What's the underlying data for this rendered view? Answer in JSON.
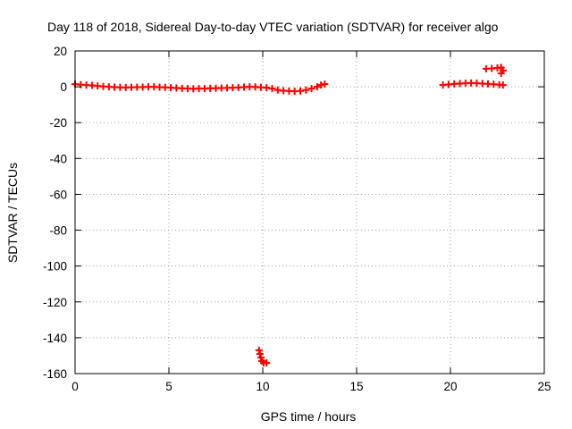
{
  "chart_data": {
    "type": "scatter",
    "title": "Day 118 of 2018, Sidereal Day-to-day VTEC variation (SDTVAR) for receiver algo",
    "xlabel": "GPS time / hours",
    "ylabel": "SDTVAR / TECUs",
    "xlim": [
      0,
      25
    ],
    "ylim": [
      -160,
      20
    ],
    "xticks": [
      0,
      5,
      10,
      15,
      20,
      25
    ],
    "yticks": [
      -160,
      -140,
      -120,
      -100,
      -80,
      -60,
      -40,
      -20,
      0,
      20
    ],
    "grid": true,
    "legend": "none",
    "marker": "plus",
    "color": "#ff0000",
    "series": [
      {
        "points": [
          [
            0.0,
            1.5
          ],
          [
            0.3,
            1.2
          ],
          [
            0.6,
            1.0
          ],
          [
            0.9,
            0.8
          ],
          [
            1.2,
            0.5
          ],
          [
            1.5,
            0.2
          ],
          [
            1.8,
            0.0
          ],
          [
            2.1,
            -0.2
          ],
          [
            2.4,
            -0.3
          ],
          [
            2.7,
            -0.4
          ],
          [
            3.0,
            -0.3
          ],
          [
            3.3,
            -0.2
          ],
          [
            3.6,
            -0.2
          ],
          [
            3.9,
            0.0
          ],
          [
            4.2,
            0.0
          ],
          [
            4.5,
            -0.2
          ],
          [
            4.8,
            -0.3
          ],
          [
            5.1,
            -0.5
          ],
          [
            5.4,
            -0.7
          ],
          [
            5.7,
            -0.9
          ],
          [
            6.0,
            -1.0
          ],
          [
            6.3,
            -1.1
          ],
          [
            6.6,
            -1.0
          ],
          [
            6.9,
            -1.0
          ],
          [
            7.2,
            -0.9
          ],
          [
            7.5,
            -0.8
          ],
          [
            7.8,
            -0.7
          ],
          [
            8.1,
            -0.6
          ],
          [
            8.4,
            -0.5
          ],
          [
            8.7,
            -0.4
          ],
          [
            9.0,
            -0.2
          ],
          [
            9.3,
            0.0
          ],
          [
            9.6,
            -0.1
          ],
          [
            9.9,
            -0.3
          ],
          [
            10.2,
            -0.5
          ],
          [
            10.5,
            -1.0
          ],
          [
            10.8,
            -1.8
          ],
          [
            11.1,
            -2.2
          ],
          [
            11.4,
            -2.4
          ],
          [
            11.7,
            -2.5
          ],
          [
            12.0,
            -2.3
          ],
          [
            12.3,
            -1.8
          ],
          [
            12.6,
            -1.0
          ],
          [
            12.9,
            0.0
          ],
          [
            13.1,
            1.0
          ],
          [
            13.3,
            1.5
          ],
          [
            9.8,
            -147
          ],
          [
            9.85,
            -149
          ],
          [
            9.9,
            -151
          ],
          [
            9.95,
            -153
          ],
          [
            10.05,
            -154
          ],
          [
            10.2,
            -154
          ],
          [
            19.6,
            1.0
          ],
          [
            19.9,
            1.3
          ],
          [
            20.2,
            1.6
          ],
          [
            20.5,
            1.8
          ],
          [
            20.8,
            2.0
          ],
          [
            21.1,
            2.1
          ],
          [
            21.4,
            2.0
          ],
          [
            21.7,
            1.8
          ],
          [
            22.0,
            1.6
          ],
          [
            22.3,
            1.4
          ],
          [
            22.6,
            1.2
          ],
          [
            22.8,
            1.0
          ],
          [
            21.9,
            10.0
          ],
          [
            22.2,
            10.2
          ],
          [
            22.5,
            10.5
          ],
          [
            22.7,
            10.8
          ],
          [
            22.8,
            9.0
          ],
          [
            22.7,
            7.5
          ]
        ]
      }
    ]
  }
}
